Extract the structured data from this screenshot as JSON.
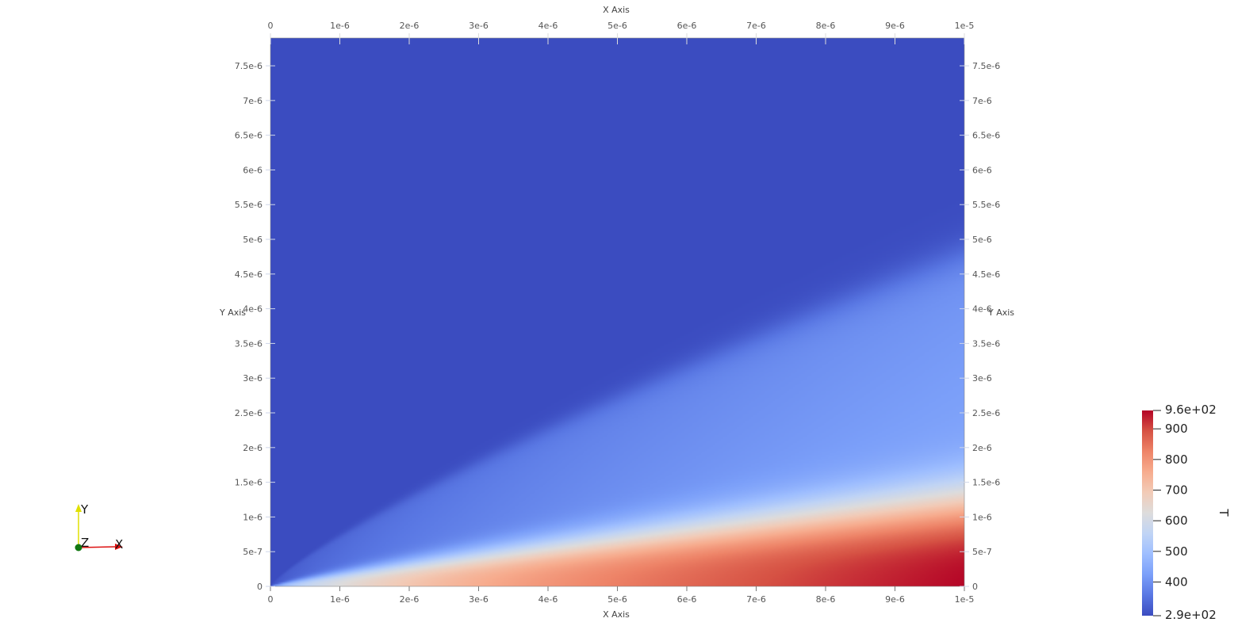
{
  "chart_data": {
    "type": "heatmap",
    "x_axis": {
      "title": "X Axis",
      "range": [
        0,
        1e-05
      ],
      "ticks": [
        0,
        1e-06,
        2e-06,
        3e-06,
        4e-06,
        5e-06,
        6e-06,
        7e-06,
        8e-06,
        9e-06,
        1e-05
      ],
      "tick_labels": [
        "0",
        "1e-6",
        "2e-6",
        "3e-6",
        "4e-6",
        "5e-6",
        "6e-6",
        "7e-6",
        "8e-6",
        "9e-6",
        "1e-5"
      ]
    },
    "y_axis": {
      "title": "Y Axis",
      "range": [
        0,
        7.9e-06
      ],
      "ticks": [
        0,
        5e-07,
        1e-06,
        1.5e-06,
        2e-06,
        2.5e-06,
        3e-06,
        3.5e-06,
        4e-06,
        4.5e-06,
        5e-06,
        5.5e-06,
        6e-06,
        6.5e-06,
        7e-06,
        7.5e-06
      ],
      "tick_labels": [
        "0",
        "5e-7",
        "1e-6",
        "1.5e-6",
        "2e-6",
        "2.5e-6",
        "3e-6",
        "3.5e-6",
        "4e-6",
        "4.5e-6",
        "5e-6",
        "5.5e-6",
        "6e-6",
        "6.5e-6",
        "7e-6",
        "7.5e-6"
      ]
    },
    "field": {
      "name": "T",
      "min": 290,
      "max": 960,
      "description_of_distribution": "hot layer along y=0 growing with x; thermal boundary layer edge near y=4.8e-6 at x=1e-5"
    },
    "colorbar": {
      "title": "T",
      "min_label": "2.9e+02",
      "max_label": "9.6e+02",
      "tick_values": [
        400,
        500,
        600,
        700,
        800,
        900
      ],
      "tick_labels": [
        "400",
        "500",
        "600",
        "700",
        "800",
        "900"
      ],
      "colormap": [
        "#3b4cc0",
        "#5977e3",
        "#7b9ff9",
        "#9ebeff",
        "#c0d4f5",
        "#dddcdc",
        "#f2cbb7",
        "#f7ac8e",
        "#ee8468",
        "#d65244",
        "#b40426"
      ]
    }
  },
  "orientation_axes": {
    "x_label": "X",
    "y_label": "Y",
    "z_label": "Z"
  }
}
